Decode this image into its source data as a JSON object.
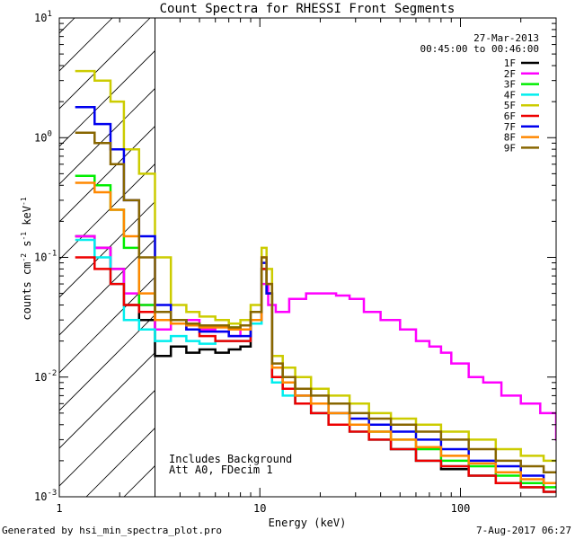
{
  "chart_data": {
    "type": "line",
    "title": "Count Spectra for RHESSI Front Segments",
    "xlabel": "Energy (keV)",
    "ylabel": "counts cm-2 s-1 keV-1",
    "xscale": "log",
    "yscale": "log",
    "xlim": [
      1,
      300
    ],
    "ylim": [
      0.001,
      10
    ],
    "x_ticks": [
      {
        "value": 1,
        "label": "1"
      },
      {
        "value": 10,
        "label": "10"
      },
      {
        "value": 100,
        "label": "100"
      }
    ],
    "y_ticks": [
      {
        "value": 0.001,
        "base": "10",
        "exp": "-3"
      },
      {
        "value": 0.01,
        "base": "10",
        "exp": "-2"
      },
      {
        "value": 0.1,
        "base": "10",
        "exp": "-1"
      },
      {
        "value": 1,
        "base": "10",
        "exp": "0"
      },
      {
        "value": 10,
        "base": "10",
        "exp": "1"
      }
    ],
    "hatched_region": {
      "x_from": 1,
      "x_to": 3
    },
    "annotations": {
      "date": "27-Mar-2013",
      "time_range": "00:45:00 to 00:46:00",
      "note1": "Includes Background",
      "note2": "Att A0, FDecim 1"
    },
    "series": [
      {
        "name": "1F",
        "color": "#000000",
        "values": [
          [
            1.2,
            0.15
          ],
          [
            1.5,
            0.12
          ],
          [
            1.8,
            0.08
          ],
          [
            2.1,
            0.04
          ],
          [
            2.5,
            0.03
          ],
          [
            3,
            0.015
          ],
          [
            3.6,
            0.018
          ],
          [
            4.3,
            0.016
          ],
          [
            5,
            0.017
          ],
          [
            6,
            0.016
          ],
          [
            7,
            0.017
          ],
          [
            8,
            0.018
          ],
          [
            9,
            0.03
          ],
          [
            10.2,
            0.08
          ],
          [
            10.8,
            0.05
          ],
          [
            11.5,
            0.01
          ],
          [
            13,
            0.008
          ],
          [
            15,
            0.006
          ],
          [
            18,
            0.005
          ],
          [
            22,
            0.004
          ],
          [
            28,
            0.004
          ],
          [
            35,
            0.003
          ],
          [
            45,
            0.0025
          ],
          [
            60,
            0.002
          ],
          [
            80,
            0.0017
          ],
          [
            110,
            0.0015
          ],
          [
            150,
            0.0013
          ],
          [
            200,
            0.0012
          ],
          [
            260,
            0.0011
          ]
        ]
      },
      {
        "name": "2F",
        "color": "#ff00ff",
        "values": [
          [
            1.2,
            0.15
          ],
          [
            1.5,
            0.12
          ],
          [
            1.8,
            0.08
          ],
          [
            2.1,
            0.05
          ],
          [
            2.5,
            0.04
          ],
          [
            3,
            0.025
          ],
          [
            3.6,
            0.03
          ],
          [
            4.3,
            0.03
          ],
          [
            5,
            0.025
          ],
          [
            6,
            0.024
          ],
          [
            7,
            0.022
          ],
          [
            8,
            0.025
          ],
          [
            9,
            0.03
          ],
          [
            10.2,
            0.06
          ],
          [
            11,
            0.04
          ],
          [
            12,
            0.035
          ],
          [
            14,
            0.045
          ],
          [
            17,
            0.05
          ],
          [
            20,
            0.05
          ],
          [
            24,
            0.048
          ],
          [
            28,
            0.045
          ],
          [
            33,
            0.035
          ],
          [
            40,
            0.03
          ],
          [
            50,
            0.025
          ],
          [
            60,
            0.02
          ],
          [
            70,
            0.018
          ],
          [
            80,
            0.016
          ],
          [
            90,
            0.013
          ],
          [
            110,
            0.01
          ],
          [
            130,
            0.009
          ],
          [
            160,
            0.007
          ],
          [
            200,
            0.006
          ],
          [
            250,
            0.005
          ],
          [
            300,
            0.003
          ]
        ]
      },
      {
        "name": "3F",
        "color": "#00ee00",
        "values": [
          [
            1.2,
            0.48
          ],
          [
            1.5,
            0.4
          ],
          [
            1.8,
            0.25
          ],
          [
            2.1,
            0.12
          ],
          [
            2.5,
            0.04
          ],
          [
            3,
            0.03
          ],
          [
            3.6,
            0.03
          ],
          [
            4.3,
            0.028
          ],
          [
            5,
            0.027
          ],
          [
            6,
            0.027
          ],
          [
            7,
            0.026
          ],
          [
            8,
            0.025
          ],
          [
            9,
            0.03
          ],
          [
            10.2,
            0.08
          ],
          [
            10.8,
            0.05
          ],
          [
            11.5,
            0.012
          ],
          [
            13,
            0.009
          ],
          [
            15,
            0.007
          ],
          [
            18,
            0.006
          ],
          [
            22,
            0.005
          ],
          [
            28,
            0.004
          ],
          [
            35,
            0.0035
          ],
          [
            45,
            0.003
          ],
          [
            60,
            0.0025
          ],
          [
            80,
            0.002
          ],
          [
            110,
            0.0018
          ],
          [
            150,
            0.0015
          ],
          [
            200,
            0.0013
          ],
          [
            260,
            0.0012
          ]
        ]
      },
      {
        "name": "4F",
        "color": "#00eeee",
        "values": [
          [
            1.2,
            0.14
          ],
          [
            1.5,
            0.1
          ],
          [
            1.8,
            0.06
          ],
          [
            2.1,
            0.03
          ],
          [
            2.5,
            0.025
          ],
          [
            3,
            0.02
          ],
          [
            3.6,
            0.022
          ],
          [
            4.3,
            0.02
          ],
          [
            5,
            0.019
          ],
          [
            6,
            0.02
          ],
          [
            7,
            0.02
          ],
          [
            8,
            0.02
          ],
          [
            9,
            0.028
          ],
          [
            10.2,
            0.08
          ],
          [
            10.8,
            0.05
          ],
          [
            11.5,
            0.009
          ],
          [
            13,
            0.007
          ],
          [
            15,
            0.006
          ],
          [
            18,
            0.005
          ],
          [
            22,
            0.004
          ],
          [
            28,
            0.0035
          ],
          [
            35,
            0.003
          ],
          [
            45,
            0.0025
          ],
          [
            60,
            0.002
          ],
          [
            80,
            0.0018
          ],
          [
            110,
            0.0015
          ],
          [
            150,
            0.0013
          ],
          [
            200,
            0.0012
          ],
          [
            260,
            0.0011
          ]
        ]
      },
      {
        "name": "5F",
        "color": "#cccc00",
        "values": [
          [
            1.2,
            3.6
          ],
          [
            1.5,
            3.0
          ],
          [
            1.8,
            2.0
          ],
          [
            2.1,
            0.8
          ],
          [
            2.5,
            0.5
          ],
          [
            3,
            0.1
          ],
          [
            3.6,
            0.04
          ],
          [
            4.3,
            0.035
          ],
          [
            5,
            0.032
          ],
          [
            6,
            0.03
          ],
          [
            7,
            0.028
          ],
          [
            8,
            0.03
          ],
          [
            9,
            0.04
          ],
          [
            10.2,
            0.12
          ],
          [
            10.8,
            0.08
          ],
          [
            11.5,
            0.015
          ],
          [
            13,
            0.012
          ],
          [
            15,
            0.01
          ],
          [
            18,
            0.008
          ],
          [
            22,
            0.007
          ],
          [
            28,
            0.006
          ],
          [
            35,
            0.005
          ],
          [
            45,
            0.0045
          ],
          [
            60,
            0.004
          ],
          [
            80,
            0.0035
          ],
          [
            110,
            0.003
          ],
          [
            150,
            0.0025
          ],
          [
            200,
            0.0022
          ],
          [
            260,
            0.002
          ]
        ]
      },
      {
        "name": "6F",
        "color": "#ee0000",
        "values": [
          [
            1.2,
            0.1
          ],
          [
            1.5,
            0.08
          ],
          [
            1.8,
            0.06
          ],
          [
            2.1,
            0.04
          ],
          [
            2.5,
            0.035
          ],
          [
            3,
            0.03
          ],
          [
            3.6,
            0.028
          ],
          [
            4.3,
            0.025
          ],
          [
            5,
            0.022
          ],
          [
            6,
            0.02
          ],
          [
            7,
            0.02
          ],
          [
            8,
            0.02
          ],
          [
            9,
            0.03
          ],
          [
            10.2,
            0.08
          ],
          [
            10.8,
            0.05
          ],
          [
            11.5,
            0.01
          ],
          [
            13,
            0.008
          ],
          [
            15,
            0.006
          ],
          [
            18,
            0.005
          ],
          [
            22,
            0.004
          ],
          [
            28,
            0.0035
          ],
          [
            35,
            0.003
          ],
          [
            45,
            0.0025
          ],
          [
            60,
            0.002
          ],
          [
            80,
            0.0018
          ],
          [
            110,
            0.0015
          ],
          [
            150,
            0.0013
          ],
          [
            200,
            0.0012
          ],
          [
            260,
            0.0011
          ]
        ]
      },
      {
        "name": "7F",
        "color": "#0000ee",
        "values": [
          [
            1.2,
            1.8
          ],
          [
            1.5,
            1.3
          ],
          [
            1.8,
            0.8
          ],
          [
            2.1,
            0.3
          ],
          [
            2.5,
            0.15
          ],
          [
            3,
            0.04
          ],
          [
            3.6,
            0.03
          ],
          [
            4.3,
            0.025
          ],
          [
            5,
            0.024
          ],
          [
            6,
            0.024
          ],
          [
            7,
            0.022
          ],
          [
            8,
            0.022
          ],
          [
            9,
            0.03
          ],
          [
            10.2,
            0.09
          ],
          [
            10.8,
            0.05
          ],
          [
            11.5,
            0.012
          ],
          [
            13,
            0.009
          ],
          [
            15,
            0.007
          ],
          [
            18,
            0.006
          ],
          [
            22,
            0.005
          ],
          [
            28,
            0.0045
          ],
          [
            35,
            0.004
          ],
          [
            45,
            0.0035
          ],
          [
            60,
            0.003
          ],
          [
            80,
            0.0025
          ],
          [
            110,
            0.002
          ],
          [
            150,
            0.0018
          ],
          [
            200,
            0.0015
          ],
          [
            260,
            0.0013
          ]
        ]
      },
      {
        "name": "8F",
        "color": "#ff8800",
        "values": [
          [
            1.2,
            0.42
          ],
          [
            1.5,
            0.35
          ],
          [
            1.8,
            0.25
          ],
          [
            2.1,
            0.15
          ],
          [
            2.5,
            0.05
          ],
          [
            3,
            0.03
          ],
          [
            3.6,
            0.028
          ],
          [
            4.3,
            0.027
          ],
          [
            5,
            0.026
          ],
          [
            6,
            0.026
          ],
          [
            7,
            0.025
          ],
          [
            8,
            0.025
          ],
          [
            9,
            0.03
          ],
          [
            10.2,
            0.1
          ],
          [
            10.8,
            0.06
          ],
          [
            11.5,
            0.012
          ],
          [
            13,
            0.009
          ],
          [
            15,
            0.007
          ],
          [
            18,
            0.006
          ],
          [
            22,
            0.005
          ],
          [
            28,
            0.004
          ],
          [
            35,
            0.0035
          ],
          [
            45,
            0.003
          ],
          [
            60,
            0.0026
          ],
          [
            80,
            0.0022
          ],
          [
            110,
            0.0019
          ],
          [
            150,
            0.0016
          ],
          [
            200,
            0.0014
          ],
          [
            260,
            0.0013
          ]
        ]
      },
      {
        "name": "9F",
        "color": "#886600",
        "values": [
          [
            1.2,
            1.1
          ],
          [
            1.5,
            0.9
          ],
          [
            1.8,
            0.6
          ],
          [
            2.1,
            0.3
          ],
          [
            2.5,
            0.1
          ],
          [
            3,
            0.035
          ],
          [
            3.6,
            0.03
          ],
          [
            4.3,
            0.028
          ],
          [
            5,
            0.027
          ],
          [
            6,
            0.027
          ],
          [
            7,
            0.026
          ],
          [
            8,
            0.027
          ],
          [
            9,
            0.035
          ],
          [
            10.2,
            0.1
          ],
          [
            10.8,
            0.06
          ],
          [
            11.5,
            0.013
          ],
          [
            13,
            0.01
          ],
          [
            15,
            0.008
          ],
          [
            18,
            0.007
          ],
          [
            22,
            0.006
          ],
          [
            28,
            0.005
          ],
          [
            35,
            0.0045
          ],
          [
            45,
            0.004
          ],
          [
            60,
            0.0035
          ],
          [
            80,
            0.003
          ],
          [
            110,
            0.0025
          ],
          [
            150,
            0.002
          ],
          [
            200,
            0.0018
          ],
          [
            260,
            0.0016
          ]
        ]
      }
    ]
  },
  "footer": {
    "generated_by": "Generated by hsi_min_spectra_plot.pro",
    "date": "7-Aug-2017 06:27"
  }
}
